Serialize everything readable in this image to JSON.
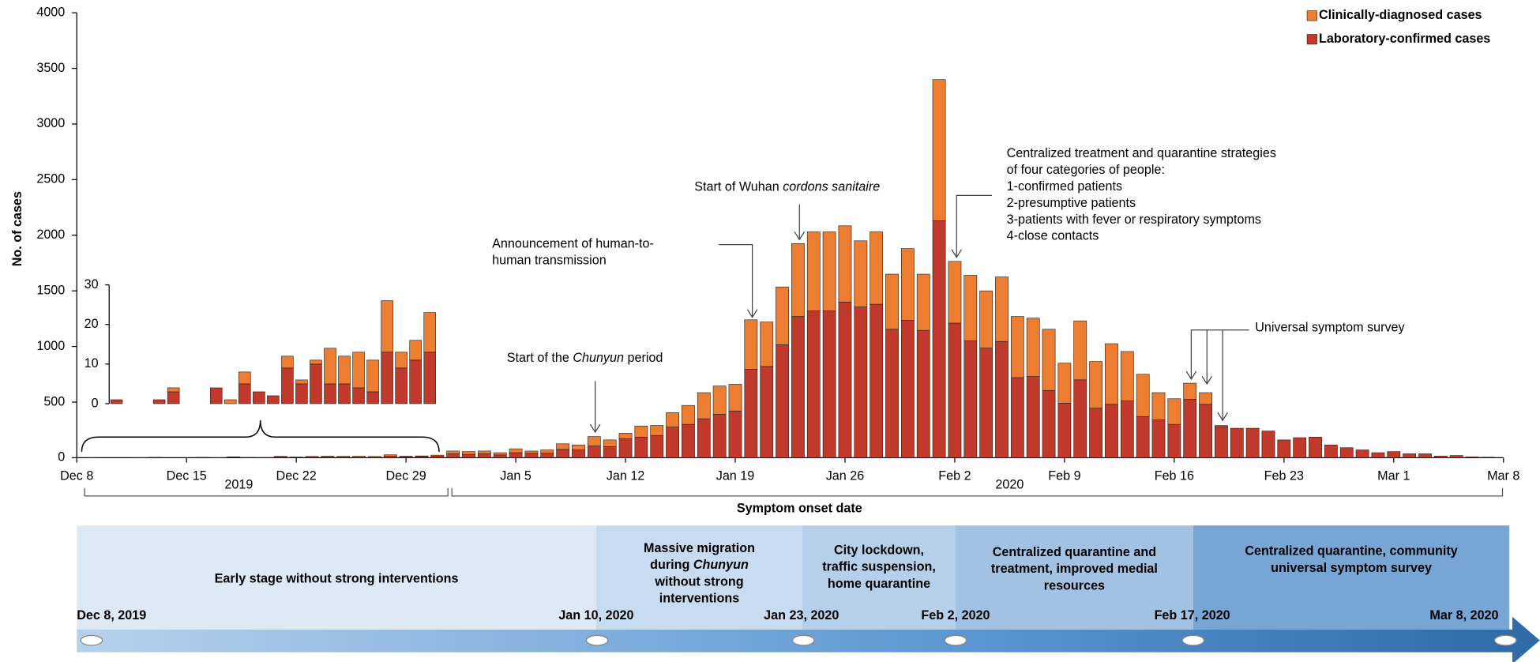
{
  "chart_data": {
    "type": "stacked_bar",
    "y_label": "No. of cases",
    "x_label": "Symptom onset date",
    "categories": [
      "Dec 8",
      null,
      null,
      null,
      null,
      null,
      null,
      "Dec 15",
      null,
      null,
      null,
      null,
      null,
      null,
      "Dec 22",
      null,
      null,
      null,
      null,
      null,
      null,
      "Dec 29",
      null,
      null,
      null,
      null,
      null,
      null,
      "Jan 5",
      null,
      null,
      null,
      null,
      null,
      null,
      "Jan 12",
      null,
      null,
      null,
      null,
      null,
      null,
      "Jan 19",
      null,
      null,
      null,
      null,
      null,
      null,
      "Jan 26",
      null,
      null,
      null,
      null,
      null,
      null,
      "Feb 2",
      null,
      null,
      null,
      null,
      null,
      null,
      "Feb 9",
      null,
      null,
      null,
      null,
      null,
      null,
      "Feb 16",
      null,
      null,
      null,
      null,
      null,
      null,
      "Feb 23",
      null,
      null,
      null,
      null,
      null,
      null,
      "Mar 1",
      null,
      null,
      null,
      null,
      null,
      null,
      "Mar 8"
    ],
    "year_labels": [
      "2019",
      "2020"
    ],
    "series": [
      {
        "name": "Laboratory-confirmed cases",
        "color": "#c0392b",
        "values": [
          0,
          1,
          0,
          0,
          1,
          3,
          0,
          0,
          4,
          0,
          5,
          3,
          2,
          9,
          5,
          10,
          5,
          5,
          4,
          3,
          13,
          9,
          11,
          13,
          35,
          30,
          35,
          25,
          45,
          40,
          40,
          75,
          70,
          105,
          100,
          170,
          185,
          200,
          275,
          300,
          350,
          390,
          420,
          795,
          820,
          1015,
          1270,
          1320,
          1320,
          1400,
          1355,
          1380,
          1155,
          1235,
          1145,
          2130,
          1210,
          1050,
          985,
          1045,
          720,
          730,
          605,
          490,
          700,
          445,
          480,
          510,
          370,
          340,
          300,
          525,
          480,
          280,
          265,
          265,
          240,
          160,
          180,
          185,
          115,
          90,
          70,
          45,
          55,
          35,
          35,
          15,
          20,
          8,
          5,
          0
        ]
      },
      {
        "name": "Clinically-diagnosed cases",
        "color": "#ed7d31",
        "values": [
          0,
          0,
          0,
          0,
          0,
          1,
          0,
          0,
          0,
          1,
          3,
          0,
          0,
          3,
          1,
          1,
          9,
          7,
          9,
          8,
          13,
          4,
          5,
          10,
          25,
          25,
          25,
          20,
          35,
          20,
          30,
          50,
          45,
          85,
          60,
          50,
          100,
          90,
          130,
          170,
          235,
          255,
          240,
          445,
          400,
          520,
          655,
          710,
          710,
          685,
          595,
          650,
          495,
          645,
          505,
          1270,
          555,
          590,
          515,
          580,
          550,
          525,
          550,
          360,
          530,
          420,
          545,
          445,
          380,
          245,
          230,
          145,
          105,
          10,
          0,
          0,
          0,
          0,
          0,
          0,
          0,
          0,
          0,
          0,
          0,
          0,
          0,
          0,
          0,
          0,
          0,
          0
        ]
      }
    ],
    "ylim": [
      0,
      4000
    ],
    "yticks": [
      0,
      500,
      1000,
      1500,
      2000,
      2500,
      3000,
      3500,
      4000
    ],
    "legend": "top-right",
    "inset": {
      "ylim": [
        0,
        30
      ],
      "yticks": [
        0,
        10,
        20,
        30
      ]
    },
    "annotations": [
      {
        "lines": [
          [
            "Start of the ",
            "Chunyun",
            " period"
          ]
        ]
      },
      {
        "lines": [
          [
            "Announcement  of human-to-"
          ],
          [
            "human  transmission"
          ]
        ]
      },
      {
        "lines": [
          [
            "Start of Wuhan ",
            "cordons sanitaire"
          ]
        ]
      },
      {
        "lines": [
          [
            "Centralized treatment and quarantine strategies"
          ],
          [
            "of four categories of people:"
          ],
          [
            "1-confirmed patients"
          ],
          [
            "2-presumptive patients"
          ],
          [
            "3-patients with fever or respiratory symptoms"
          ],
          [
            "4-close contacts"
          ]
        ]
      },
      {
        "lines": [
          [
            "Universal symptom survey"
          ]
        ]
      }
    ]
  },
  "timeline": {
    "phases": [
      {
        "lines": [
          [
            "Early stage without strong interventions"
          ]
        ]
      },
      {
        "lines": [
          [
            "Massive migration"
          ],
          [
            "during ",
            "Chunyun"
          ],
          [
            "without strong"
          ],
          [
            "interventions"
          ]
        ]
      },
      {
        "lines": [
          [
            "City lockdown,"
          ],
          [
            "traffic suspension,"
          ],
          [
            "home quarantine"
          ]
        ]
      },
      {
        "lines": [
          [
            "Centralized quarantine and"
          ],
          [
            "treatment, improved medial"
          ],
          [
            "resources"
          ]
        ]
      },
      {
        "lines": [
          [
            "Centralized quarantine, community"
          ],
          [
            "universal symptom survey"
          ]
        ]
      }
    ],
    "milestones": [
      "Dec 8, 2019",
      "Jan 10, 2020",
      "Jan 23, 2020",
      "Feb 2, 2020",
      "Feb 17, 2020",
      "Mar 8, 2020"
    ]
  }
}
